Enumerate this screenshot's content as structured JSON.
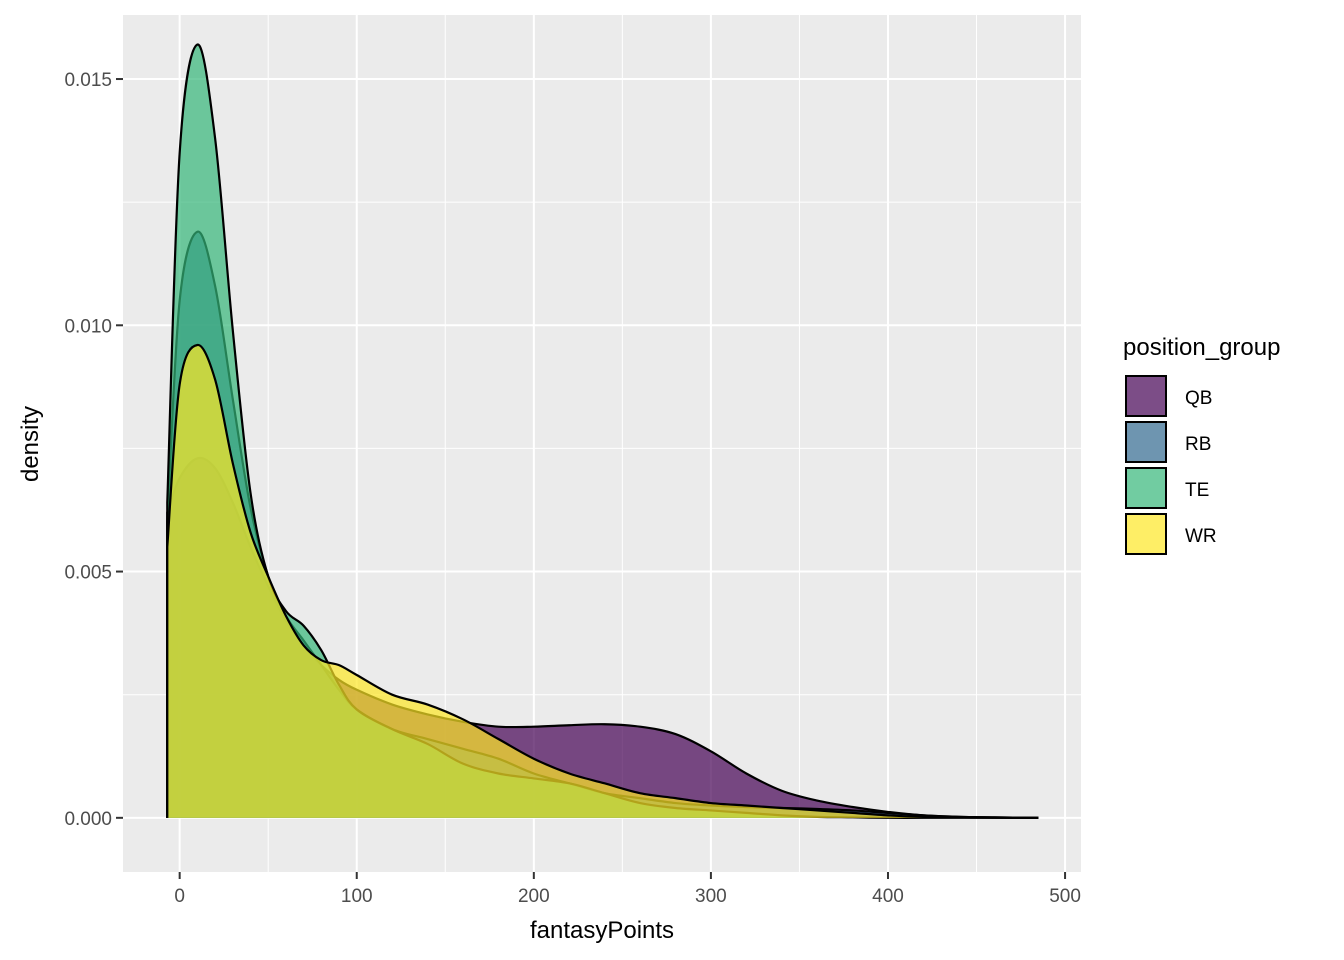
{
  "chart_data": {
    "type": "area",
    "subtype": "density",
    "title": "",
    "xlabel": "fantasyPoints",
    "ylabel": "density",
    "xlim": [
      -32,
      509
    ],
    "ylim": [
      -0.0011,
      0.0163
    ],
    "x_ticks": [
      0,
      100,
      200,
      300,
      400,
      500
    ],
    "x_tick_labels": [
      "0",
      "100",
      "200",
      "300",
      "400",
      "500"
    ],
    "y_ticks": [
      0.0,
      0.005,
      0.01,
      0.015
    ],
    "y_tick_labels": [
      "0.000",
      "0.005",
      "0.010",
      "0.015"
    ],
    "grid": true,
    "legend": {
      "title": "position_group",
      "placement": "right",
      "entries": [
        "QB",
        "RB",
        "TE",
        "WR"
      ]
    },
    "fill_opacity": 0.7,
    "series": [
      {
        "name": "QB",
        "color": "#440154",
        "x": [
          -7,
          0,
          10,
          20,
          30,
          40,
          50,
          60,
          70,
          80,
          90,
          100,
          120,
          140,
          160,
          180,
          200,
          220,
          240,
          260,
          280,
          300,
          320,
          340,
          360,
          380,
          400,
          420,
          440,
          460,
          485
        ],
        "y": [
          0.0062,
          0.0069,
          0.0073,
          0.0071,
          0.0064,
          0.0055,
          0.0047,
          0.004,
          0.0035,
          0.0031,
          0.0028,
          0.0026,
          0.0023,
          0.0021,
          0.00195,
          0.00185,
          0.00185,
          0.00188,
          0.0019,
          0.00185,
          0.0017,
          0.00135,
          0.0009,
          0.00055,
          0.00035,
          0.00022,
          0.00012,
          5e-05,
          2e-05,
          1e-05,
          0.0
        ]
      },
      {
        "name": "RB",
        "color": "#31688e",
        "x": [
          -7,
          0,
          10,
          20,
          30,
          40,
          50,
          60,
          70,
          80,
          90,
          100,
          120,
          140,
          160,
          180,
          200,
          220,
          240,
          260,
          280,
          300,
          320,
          340,
          360,
          380,
          400,
          420,
          440,
          460,
          485
        ],
        "y": [
          0.006,
          0.0105,
          0.0119,
          0.0108,
          0.0085,
          0.0063,
          0.0049,
          0.0041,
          0.0036,
          0.0031,
          0.0026,
          0.0022,
          0.0018,
          0.0016,
          0.0014,
          0.0012,
          0.0009,
          0.0007,
          0.0005,
          0.0004,
          0.0003,
          0.00025,
          0.00022,
          0.0002,
          0.00018,
          0.00015,
          0.0001,
          5e-05,
          2e-05,
          1e-05,
          0.0
        ]
      },
      {
        "name": "TE",
        "color": "#35b779",
        "x": [
          -7,
          0,
          10,
          20,
          30,
          40,
          50,
          60,
          70,
          80,
          90,
          100,
          120,
          140,
          160,
          180,
          200,
          220,
          240,
          260,
          280,
          300,
          320,
          340,
          360,
          380,
          400,
          420,
          440,
          460,
          485
        ],
        "y": [
          0.0064,
          0.0135,
          0.0157,
          0.0138,
          0.0099,
          0.0066,
          0.0049,
          0.0042,
          0.0039,
          0.0034,
          0.0027,
          0.0022,
          0.0018,
          0.0015,
          0.0011,
          0.0009,
          0.0008,
          0.0007,
          0.0005,
          0.0003,
          0.0002,
          0.00015,
          0.0001,
          5e-05,
          2e-05,
          1e-05,
          0.0,
          0.0,
          0.0,
          0.0,
          0.0
        ]
      },
      {
        "name": "WR",
        "color": "#fde725",
        "x": [
          -7,
          0,
          10,
          20,
          30,
          40,
          50,
          60,
          70,
          80,
          90,
          100,
          120,
          140,
          160,
          180,
          200,
          220,
          240,
          260,
          280,
          300,
          320,
          340,
          360,
          380,
          400,
          420,
          440,
          460,
          485
        ],
        "y": [
          0.0055,
          0.0088,
          0.0096,
          0.0089,
          0.0072,
          0.0058,
          0.0049,
          0.0041,
          0.0035,
          0.0032,
          0.0031,
          0.0029,
          0.0025,
          0.0023,
          0.002,
          0.0016,
          0.0012,
          0.0009,
          0.0007,
          0.0005,
          0.0004,
          0.0003,
          0.00025,
          0.0002,
          0.00015,
          0.0001,
          5e-05,
          2e-05,
          1e-05,
          0.0,
          0.0
        ]
      }
    ]
  }
}
